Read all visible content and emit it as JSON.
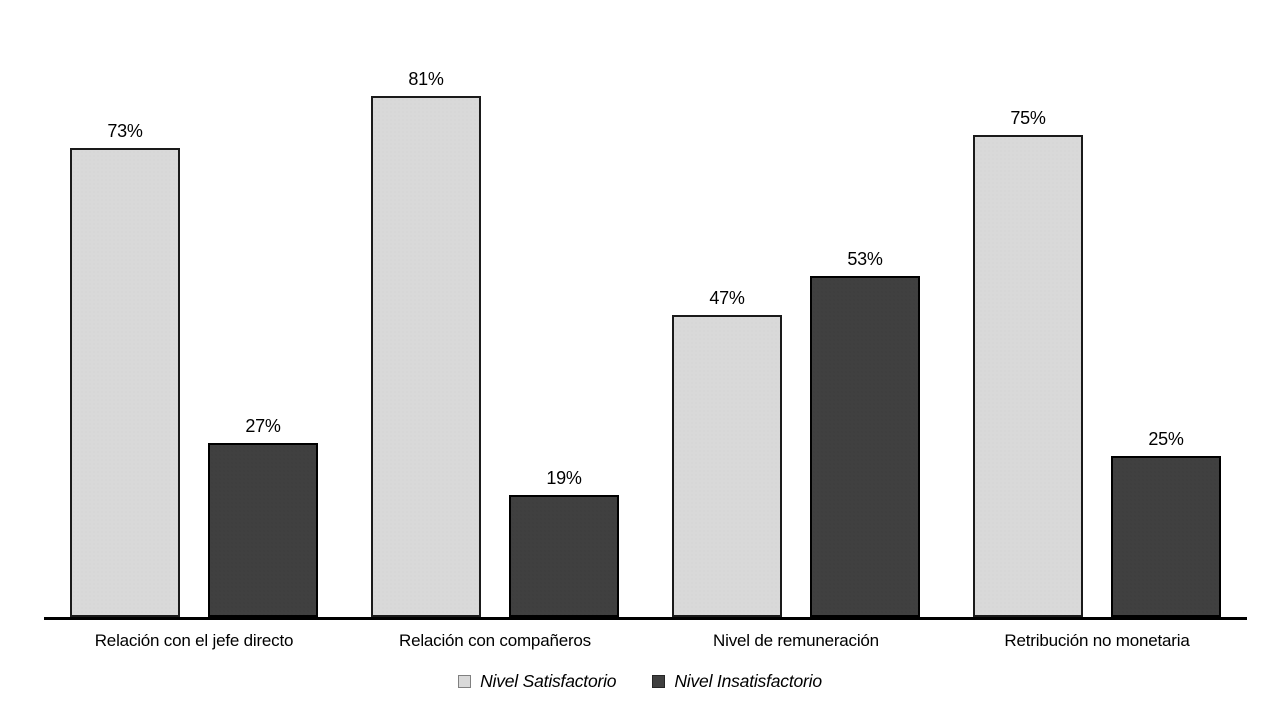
{
  "chart_data": {
    "type": "bar",
    "title": "",
    "xlabel": "",
    "ylabel": "",
    "grid": false,
    "legend_position": "bottom",
    "value_suffix": "%",
    "ylim": [
      0,
      96
    ],
    "categories": [
      "Relación con el jefe directo",
      "Relación con compañeros",
      "Nivel de remuneración",
      "Retribución no monetaria"
    ],
    "series": [
      {
        "name": "Nivel Satisfactorio",
        "fill": "#d9d9d9",
        "border": "#1a1a1a",
        "swatch_border": "#808080",
        "values": [
          73,
          81,
          47,
          75
        ],
        "labels": [
          "73%",
          "81%",
          "47%",
          "75%"
        ]
      },
      {
        "name": "Nivel Insatisfactorio",
        "fill": "#404040",
        "border": "#000000",
        "swatch_border": "#262626",
        "values": [
          27,
          19,
          53,
          25
        ],
        "labels": [
          "27%",
          "19%",
          "53%",
          "25%"
        ]
      }
    ],
    "colors": {
      "background": "#ffffff",
      "axis_line": "#000000",
      "text": "#000000"
    }
  }
}
